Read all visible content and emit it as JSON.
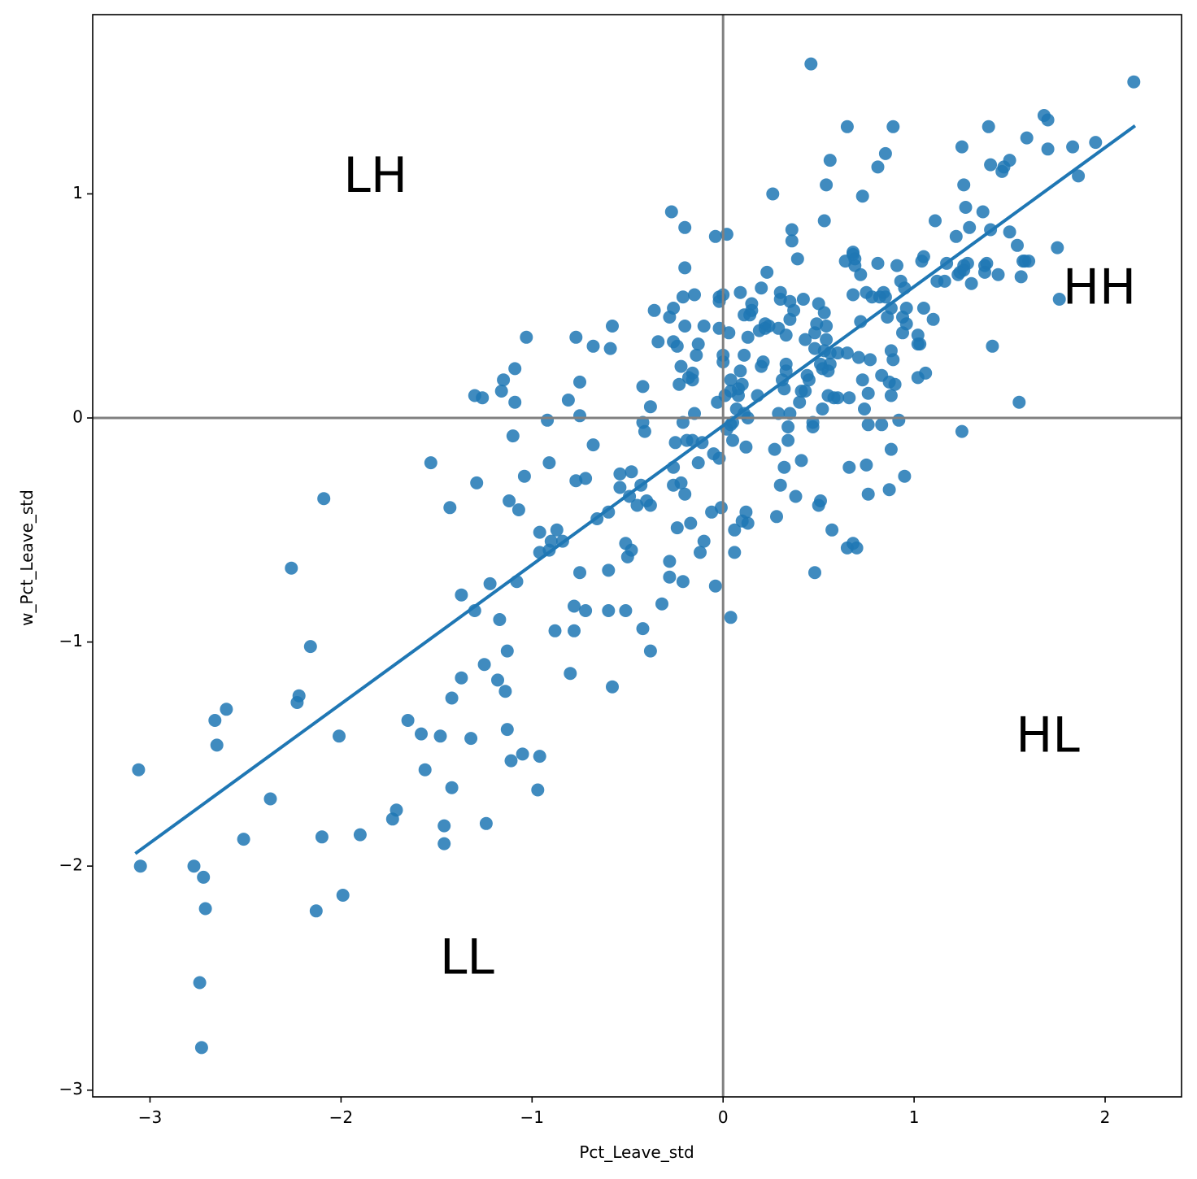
{
  "chart_data": {
    "type": "scatter",
    "xlabel": "Pct_Leave_std",
    "ylabel": "w_Pct_Leave_std",
    "xlim": [
      -3.3,
      2.4
    ],
    "ylim": [
      -3.03,
      1.8
    ],
    "xticks": [
      -3,
      -2,
      -1,
      0,
      1,
      2
    ],
    "yticks": [
      -3,
      -2,
      -1,
      0,
      1
    ],
    "xtick_labels": [
      "−3",
      "−2",
      "−1",
      "0",
      "1",
      "2"
    ],
    "ytick_labels": [
      "−3",
      "−2",
      "−1",
      "0",
      "1"
    ],
    "reference_lines": {
      "x": 0,
      "y": 0
    },
    "grid": false,
    "point_color": "#1f77b4",
    "refline_color": "#808080",
    "quadrant_labels": [
      {
        "text": "LH",
        "x": -1.82,
        "y": 1.07
      },
      {
        "text": "HH",
        "x": 1.97,
        "y": 0.57
      },
      {
        "text": "HL",
        "x": 1.7,
        "y": -1.43
      },
      {
        "text": "LL",
        "x": -1.34,
        "y": -2.42
      }
    ],
    "regression_line": {
      "x": [
        -3.07,
        2.15
      ],
      "y": [
        -1.94,
        1.3
      ]
    },
    "points": [
      [
        -3.06,
        -1.57
      ],
      [
        -3.05,
        -2.0
      ],
      [
        -2.77,
        -2.0
      ],
      [
        -2.74,
        -2.52
      ],
      [
        -2.73,
        -2.81
      ],
      [
        -2.72,
        -2.05
      ],
      [
        -2.71,
        -2.19
      ],
      [
        -2.66,
        -1.35
      ],
      [
        -2.65,
        -1.46
      ],
      [
        -2.6,
        -1.3
      ],
      [
        -2.51,
        -1.88
      ],
      [
        -2.37,
        -1.7
      ],
      [
        -2.26,
        -0.67
      ],
      [
        -2.23,
        -1.27
      ],
      [
        -2.22,
        -1.24
      ],
      [
        -2.16,
        -1.02
      ],
      [
        -2.13,
        -2.2
      ],
      [
        -2.1,
        -1.87
      ],
      [
        -2.09,
        -0.36
      ],
      [
        -2.01,
        -1.42
      ],
      [
        -1.99,
        -2.13
      ],
      [
        -1.9,
        -1.86
      ],
      [
        -1.73,
        -1.79
      ],
      [
        -1.71,
        -1.75
      ],
      [
        -1.65,
        -1.35
      ],
      [
        -1.58,
        -1.41
      ],
      [
        -1.56,
        -1.57
      ],
      [
        -1.53,
        -0.2
      ],
      [
        -1.48,
        -1.42
      ],
      [
        -1.46,
        -1.82
      ],
      [
        -1.46,
        -1.9
      ],
      [
        -1.43,
        -0.4
      ],
      [
        -1.42,
        -1.25
      ],
      [
        -1.42,
        -1.65
      ],
      [
        -1.37,
        -0.79
      ],
      [
        -1.37,
        -1.16
      ],
      [
        -1.32,
        -1.43
      ],
      [
        -1.3,
        -0.86
      ],
      [
        -1.3,
        0.1
      ],
      [
        -1.29,
        -0.29
      ],
      [
        -1.26,
        0.09
      ],
      [
        -1.25,
        -1.1
      ],
      [
        -1.24,
        -1.81
      ],
      [
        -1.22,
        -0.74
      ],
      [
        -1.18,
        -1.17
      ],
      [
        -1.17,
        -0.9
      ],
      [
        -1.16,
        0.12
      ],
      [
        -1.15,
        0.17
      ],
      [
        -1.14,
        -1.22
      ],
      [
        -1.13,
        -1.39
      ],
      [
        -1.13,
        -1.04
      ],
      [
        -1.12,
        -0.37
      ],
      [
        -1.11,
        -1.53
      ],
      [
        -1.1,
        -0.08
      ],
      [
        -1.09,
        0.07
      ],
      [
        -1.09,
        0.22
      ],
      [
        -1.08,
        -0.73
      ],
      [
        -1.07,
        -0.41
      ],
      [
        -1.05,
        -1.5
      ],
      [
        -1.04,
        -0.26
      ],
      [
        -1.03,
        0.36
      ],
      [
        -0.97,
        -1.66
      ],
      [
        -0.96,
        -1.51
      ],
      [
        -0.96,
        -0.51
      ],
      [
        -0.96,
        -0.6
      ],
      [
        -0.92,
        -0.01
      ],
      [
        -0.91,
        -0.59
      ],
      [
        -0.91,
        -0.2
      ],
      [
        -0.9,
        -0.55
      ],
      [
        -0.88,
        -0.95
      ],
      [
        -0.87,
        -0.5
      ],
      [
        -0.84,
        -0.55
      ],
      [
        -0.81,
        0.08
      ],
      [
        -0.8,
        -1.14
      ],
      [
        -0.78,
        -0.95
      ],
      [
        -0.78,
        -0.84
      ],
      [
        -0.77,
        0.36
      ],
      [
        -0.77,
        -0.28
      ],
      [
        -0.75,
        -0.69
      ],
      [
        -0.75,
        0.16
      ],
      [
        -0.75,
        0.01
      ],
      [
        -0.72,
        -0.27
      ],
      [
        -0.72,
        -0.86
      ],
      [
        -0.68,
        0.32
      ],
      [
        -0.68,
        -0.12
      ],
      [
        -0.66,
        -0.45
      ],
      [
        -0.6,
        -0.42
      ],
      [
        -0.6,
        -0.68
      ],
      [
        -0.6,
        -0.86
      ],
      [
        -0.59,
        0.31
      ],
      [
        -0.58,
        0.41
      ],
      [
        -0.58,
        -1.2
      ],
      [
        -0.54,
        -0.31
      ],
      [
        -0.54,
        -0.25
      ],
      [
        -0.51,
        -0.56
      ],
      [
        -0.51,
        -0.86
      ],
      [
        -0.5,
        -0.62
      ],
      [
        -0.49,
        -0.35
      ],
      [
        -0.48,
        -0.24
      ],
      [
        -0.48,
        -0.59
      ],
      [
        -0.45,
        -0.39
      ],
      [
        -0.43,
        -0.3
      ],
      [
        -0.42,
        0.14
      ],
      [
        -0.42,
        -0.94
      ],
      [
        -0.41,
        -0.06
      ],
      [
        -0.42,
        -0.02
      ],
      [
        -0.4,
        -0.37
      ],
      [
        -0.38,
        -0.39
      ],
      [
        -0.38,
        0.05
      ],
      [
        -0.38,
        -1.04
      ],
      [
        -0.36,
        0.48
      ],
      [
        -0.34,
        0.34
      ],
      [
        -0.32,
        -0.83
      ],
      [
        -0.28,
        -0.64
      ],
      [
        -0.28,
        -0.71
      ],
      [
        -0.28,
        0.45
      ],
      [
        -0.27,
        0.92
      ],
      [
        -0.26,
        -0.22
      ],
      [
        -0.26,
        0.49
      ],
      [
        -0.26,
        0.34
      ],
      [
        -0.26,
        -0.3
      ],
      [
        -0.25,
        -0.11
      ],
      [
        -0.24,
        -0.49
      ],
      [
        -0.24,
        0.32
      ],
      [
        -0.23,
        0.15
      ],
      [
        -0.22,
        -0.29
      ],
      [
        -0.22,
        0.23
      ],
      [
        -0.21,
        0.54
      ],
      [
        -0.21,
        -0.02
      ],
      [
        -0.21,
        -0.73
      ],
      [
        -0.2,
        0.67
      ],
      [
        -0.2,
        -0.34
      ],
      [
        -0.2,
        0.85
      ],
      [
        -0.2,
        0.41
      ],
      [
        -0.19,
        -0.1
      ],
      [
        -0.18,
        0.18
      ],
      [
        -0.17,
        -0.47
      ],
      [
        -0.16,
        0.17
      ],
      [
        -0.16,
        0.2
      ],
      [
        -0.16,
        -0.1
      ],
      [
        -0.15,
        0.55
      ],
      [
        -0.15,
        0.02
      ],
      [
        -0.14,
        0.28
      ],
      [
        -0.13,
        0.33
      ],
      [
        -0.13,
        -0.2
      ],
      [
        -0.12,
        -0.6
      ],
      [
        -0.11,
        -0.11
      ],
      [
        -0.1,
        -0.55
      ],
      [
        -0.1,
        0.41
      ],
      [
        -0.06,
        -0.42
      ],
      [
        -0.05,
        -0.16
      ],
      [
        -0.04,
        -0.75
      ],
      [
        -0.04,
        0.81
      ],
      [
        -0.03,
        0.07
      ],
      [
        -0.02,
        0.4
      ],
      [
        -0.02,
        -0.18
      ],
      [
        -0.02,
        0.52
      ],
      [
        -0.02,
        0.54
      ],
      [
        -0.01,
        -0.4
      ],
      [
        0,
        0.55
      ],
      [
        0,
        0.25
      ],
      [
        0,
        0.28
      ],
      [
        0.01,
        0.1
      ],
      [
        0.02,
        -0.05
      ],
      [
        0.02,
        0.82
      ],
      [
        0.03,
        0.38
      ],
      [
        0.04,
        0.17
      ],
      [
        0.04,
        -0.03
      ],
      [
        0.04,
        0.12
      ],
      [
        0.04,
        -0.89
      ],
      [
        0.05,
        -0.02
      ],
      [
        0.05,
        -0.1
      ],
      [
        0.06,
        -0.6
      ],
      [
        0.06,
        -0.5
      ],
      [
        0.07,
        0.04
      ],
      [
        0.08,
        0.1
      ],
      [
        0.08,
        0.13
      ],
      [
        0.09,
        0.56
      ],
      [
        0.09,
        0.21
      ],
      [
        0.1,
        -0.46
      ],
      [
        0.11,
        0.02
      ],
      [
        0.1,
        0.15
      ],
      [
        0.11,
        0.28
      ],
      [
        0.11,
        0.46
      ],
      [
        0.12,
        -0.13
      ],
      [
        0.12,
        -0.42
      ],
      [
        0.13,
        0.0
      ],
      [
        0.13,
        -0.47
      ],
      [
        0.13,
        0.36
      ],
      [
        0.14,
        0.46
      ],
      [
        0.15,
        0.48
      ],
      [
        0.15,
        0.51
      ],
      [
        0.18,
        0.1
      ],
      [
        0.19,
        0.39
      ],
      [
        0.2,
        0.58
      ],
      [
        0.2,
        0.23
      ],
      [
        0.21,
        0.25
      ],
      [
        0.22,
        0.4
      ],
      [
        0.22,
        0.42
      ],
      [
        0.23,
        0.65
      ],
      [
        0.24,
        0.41
      ],
      [
        0.26,
        1.0
      ],
      [
        0.27,
        -0.14
      ],
      [
        0.28,
        -0.44
      ],
      [
        0.29,
        0.4
      ],
      [
        0.29,
        0.02
      ],
      [
        0.3,
        0.53
      ],
      [
        0.3,
        -0.3
      ],
      [
        0.3,
        0.56
      ],
      [
        0.31,
        0.17
      ],
      [
        0.32,
        0.13
      ],
      [
        0.32,
        -0.22
      ],
      [
        0.33,
        0.24
      ],
      [
        0.33,
        0.37
      ],
      [
        0.33,
        0.21
      ],
      [
        0.34,
        -0.04
      ],
      [
        0.34,
        -0.1
      ],
      [
        0.35,
        0.02
      ],
      [
        0.35,
        0.52
      ],
      [
        0.35,
        0.44
      ],
      [
        0.36,
        0.84
      ],
      [
        0.36,
        0.79
      ],
      [
        0.37,
        0.48
      ],
      [
        0.38,
        -0.35
      ],
      [
        0.39,
        0.71
      ],
      [
        0.4,
        0.07
      ],
      [
        0.41,
        -0.19
      ],
      [
        0.41,
        0.12
      ],
      [
        0.42,
        0.53
      ],
      [
        0.43,
        0.12
      ],
      [
        0.43,
        0.35
      ],
      [
        0.44,
        0.19
      ],
      [
        0.45,
        0.17
      ],
      [
        0.46,
        1.58
      ],
      [
        0.47,
        -0.02
      ],
      [
        0.47,
        -0.04
      ],
      [
        0.48,
        0.31
      ],
      [
        0.48,
        0.38
      ],
      [
        0.48,
        -0.69
      ],
      [
        0.49,
        0.42
      ],
      [
        0.5,
        0.51
      ],
      [
        0.5,
        -0.39
      ],
      [
        0.51,
        0.24
      ],
      [
        0.51,
        -0.37
      ],
      [
        0.52,
        0.22
      ],
      [
        0.52,
        0.04
      ],
      [
        0.53,
        0.47
      ],
      [
        0.53,
        0.88
      ],
      [
        0.53,
        0.3
      ],
      [
        0.54,
        1.04
      ],
      [
        0.54,
        0.35
      ],
      [
        0.54,
        0.41
      ],
      [
        0.55,
        0.1
      ],
      [
        0.55,
        0.21
      ],
      [
        0.56,
        1.15
      ],
      [
        0.56,
        0.24
      ],
      [
        0.56,
        0.29
      ],
      [
        0.57,
        -0.5
      ],
      [
        0.58,
        0.09
      ],
      [
        0.6,
        0.29
      ],
      [
        0.6,
        0.09
      ],
      [
        0.64,
        0.7
      ],
      [
        0.65,
        0.29
      ],
      [
        0.65,
        1.3
      ],
      [
        0.65,
        -0.58
      ],
      [
        0.66,
        -0.22
      ],
      [
        0.66,
        0.09
      ],
      [
        0.68,
        0.74
      ],
      [
        0.68,
        0.55
      ],
      [
        0.68,
        -0.56
      ],
      [
        0.68,
        0.73
      ],
      [
        0.69,
        0.71
      ],
      [
        0.69,
        0.68
      ],
      [
        0.7,
        -0.58
      ],
      [
        0.71,
        0.27
      ],
      [
        0.72,
        0.43
      ],
      [
        0.72,
        0.64
      ],
      [
        0.73,
        0.99
      ],
      [
        0.73,
        0.17
      ],
      [
        0.74,
        0.04
      ],
      [
        0.75,
        0.56
      ],
      [
        0.75,
        -0.21
      ],
      [
        0.76,
        -0.34
      ],
      [
        0.76,
        -0.03
      ],
      [
        0.76,
        0.11
      ],
      [
        0.77,
        0.26
      ],
      [
        0.78,
        0.54
      ],
      [
        0.81,
        1.12
      ],
      [
        0.81,
        0.69
      ],
      [
        0.82,
        0.54
      ],
      [
        0.83,
        -0.03
      ],
      [
        0.83,
        0.19
      ],
      [
        0.84,
        0.56
      ],
      [
        0.85,
        0.54
      ],
      [
        0.85,
        1.18
      ],
      [
        0.86,
        0.45
      ],
      [
        0.87,
        0.16
      ],
      [
        0.87,
        -0.32
      ],
      [
        0.88,
        0.3
      ],
      [
        0.88,
        0.1
      ],
      [
        0.88,
        0.49
      ],
      [
        0.88,
        -0.14
      ],
      [
        0.89,
        0.26
      ],
      [
        0.89,
        1.3
      ],
      [
        0.9,
        0.15
      ],
      [
        0.91,
        0.68
      ],
      [
        0.92,
        -0.01
      ],
      [
        0.93,
        0.61
      ],
      [
        0.94,
        0.45
      ],
      [
        0.94,
        0.38
      ],
      [
        0.95,
        -0.26
      ],
      [
        0.95,
        0.58
      ],
      [
        0.96,
        0.49
      ],
      [
        0.96,
        0.42
      ],
      [
        1.02,
        0.37
      ],
      [
        1.02,
        0.33
      ],
      [
        1.02,
        0.18
      ],
      [
        1.03,
        0.33
      ],
      [
        1.04,
        0.7
      ],
      [
        1.05,
        0.72
      ],
      [
        1.05,
        0.49
      ],
      [
        1.06,
        0.2
      ],
      [
        1.1,
        0.44
      ],
      [
        1.11,
        0.88
      ],
      [
        1.12,
        0.61
      ],
      [
        1.16,
        0.61
      ],
      [
        1.17,
        0.69
      ],
      [
        1.22,
        0.81
      ],
      [
        1.23,
        0.64
      ],
      [
        1.24,
        0.65
      ],
      [
        1.25,
        1.21
      ],
      [
        1.25,
        -0.06
      ],
      [
        1.26,
        0.68
      ],
      [
        1.26,
        1.04
      ],
      [
        1.26,
        0.66
      ],
      [
        1.27,
        0.94
      ],
      [
        1.28,
        0.69
      ],
      [
        1.29,
        0.85
      ],
      [
        1.3,
        0.6
      ],
      [
        1.36,
        0.92
      ],
      [
        1.37,
        0.68
      ],
      [
        1.37,
        0.65
      ],
      [
        1.38,
        0.69
      ],
      [
        1.39,
        1.3
      ],
      [
        1.4,
        1.13
      ],
      [
        1.4,
        0.84
      ],
      [
        1.41,
        0.32
      ],
      [
        1.44,
        0.64
      ],
      [
        1.46,
        1.1
      ],
      [
        1.47,
        1.12
      ],
      [
        1.5,
        0.83
      ],
      [
        1.5,
        1.15
      ],
      [
        1.54,
        0.77
      ],
      [
        1.55,
        0.07
      ],
      [
        1.56,
        0.63
      ],
      [
        1.57,
        0.7
      ],
      [
        1.58,
        0.7
      ],
      [
        1.59,
        1.25
      ],
      [
        1.6,
        0.7
      ],
      [
        1.68,
        1.35
      ],
      [
        1.7,
        1.33
      ],
      [
        1.7,
        1.2
      ],
      [
        1.75,
        0.76
      ],
      [
        1.76,
        0.53
      ],
      [
        1.83,
        1.21
      ],
      [
        1.86,
        1.08
      ],
      [
        1.95,
        1.23
      ],
      [
        2.15,
        1.5
      ]
    ]
  }
}
